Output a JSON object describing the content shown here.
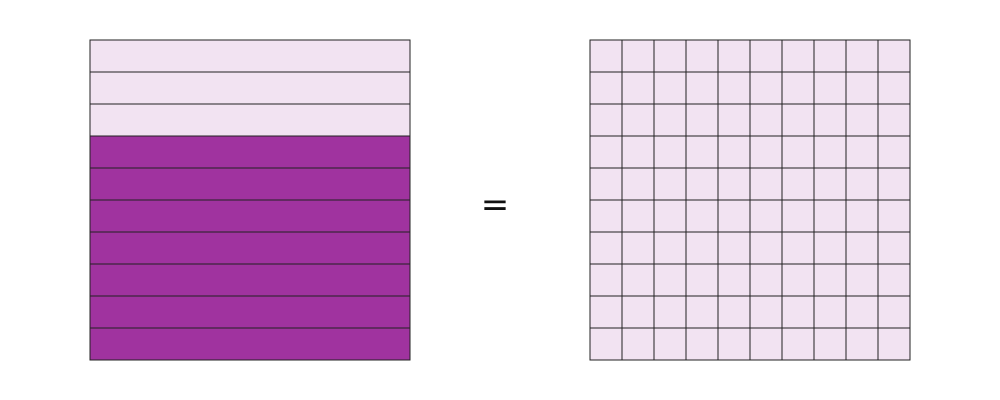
{
  "diagram": {
    "left_model": {
      "rows": 10,
      "shaded_rows": 7,
      "shaded_from": "bottom"
    },
    "operator": "=",
    "right_model": {
      "rows": 10,
      "cols": 10,
      "shaded_cells": 0
    },
    "colors": {
      "shaded": "#a0339f",
      "unshaded": "#f2e3f2",
      "stroke": "#222222",
      "text": "#111111"
    }
  }
}
